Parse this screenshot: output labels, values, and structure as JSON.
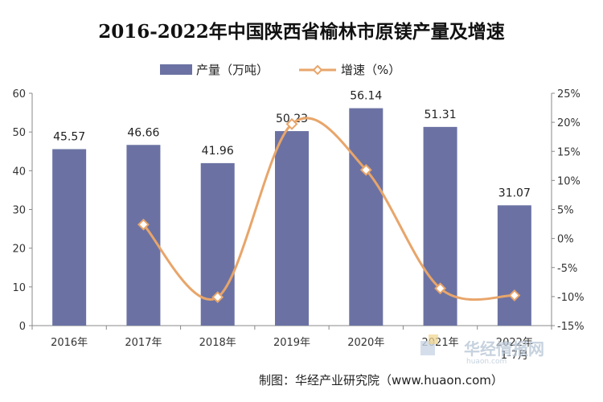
{
  "chart_data": {
    "type": "bar+line",
    "title": "2016-2022年中国陕西省榆林市原镁产量及增速",
    "categories": [
      "2016年",
      "2017年",
      "2018年",
      "2019年",
      "2020年",
      "2021年",
      "2022年"
    ],
    "category_sublabels": [
      "",
      "",
      "",
      "",
      "",
      "",
      "1-7月"
    ],
    "series": [
      {
        "name": "产量（万吨）",
        "type": "bar",
        "axis": "left",
        "color": "#6b72a3",
        "values": [
          45.57,
          46.66,
          41.96,
          50.23,
          56.14,
          51.31,
          31.07
        ],
        "labels": [
          "45.57",
          "46.66",
          "41.96",
          "50.23",
          "56.14",
          "51.31",
          "31.07"
        ]
      },
      {
        "name": "增速（%）",
        "type": "line",
        "axis": "right",
        "color": "#e8a56a",
        "values": [
          null,
          2.4,
          -10.1,
          19.7,
          11.8,
          -8.6,
          -9.8
        ]
      }
    ],
    "y_left": {
      "min": 0,
      "max": 60,
      "ticks": [
        "0",
        "10",
        "20",
        "30",
        "40",
        "50",
        "60"
      ]
    },
    "y_right": {
      "min": -15,
      "max": 25,
      "ticks": [
        "-15%",
        "-10%",
        "-5%",
        "0%",
        "5%",
        "10%",
        "15%",
        "20%",
        "25%"
      ]
    },
    "grid": false,
    "legend": "top-center"
  },
  "source_text": "制图：华经产业研究院（www.huaon.com）",
  "watermark": {
    "text": "华经情报网",
    "sub": "huaon.com"
  }
}
